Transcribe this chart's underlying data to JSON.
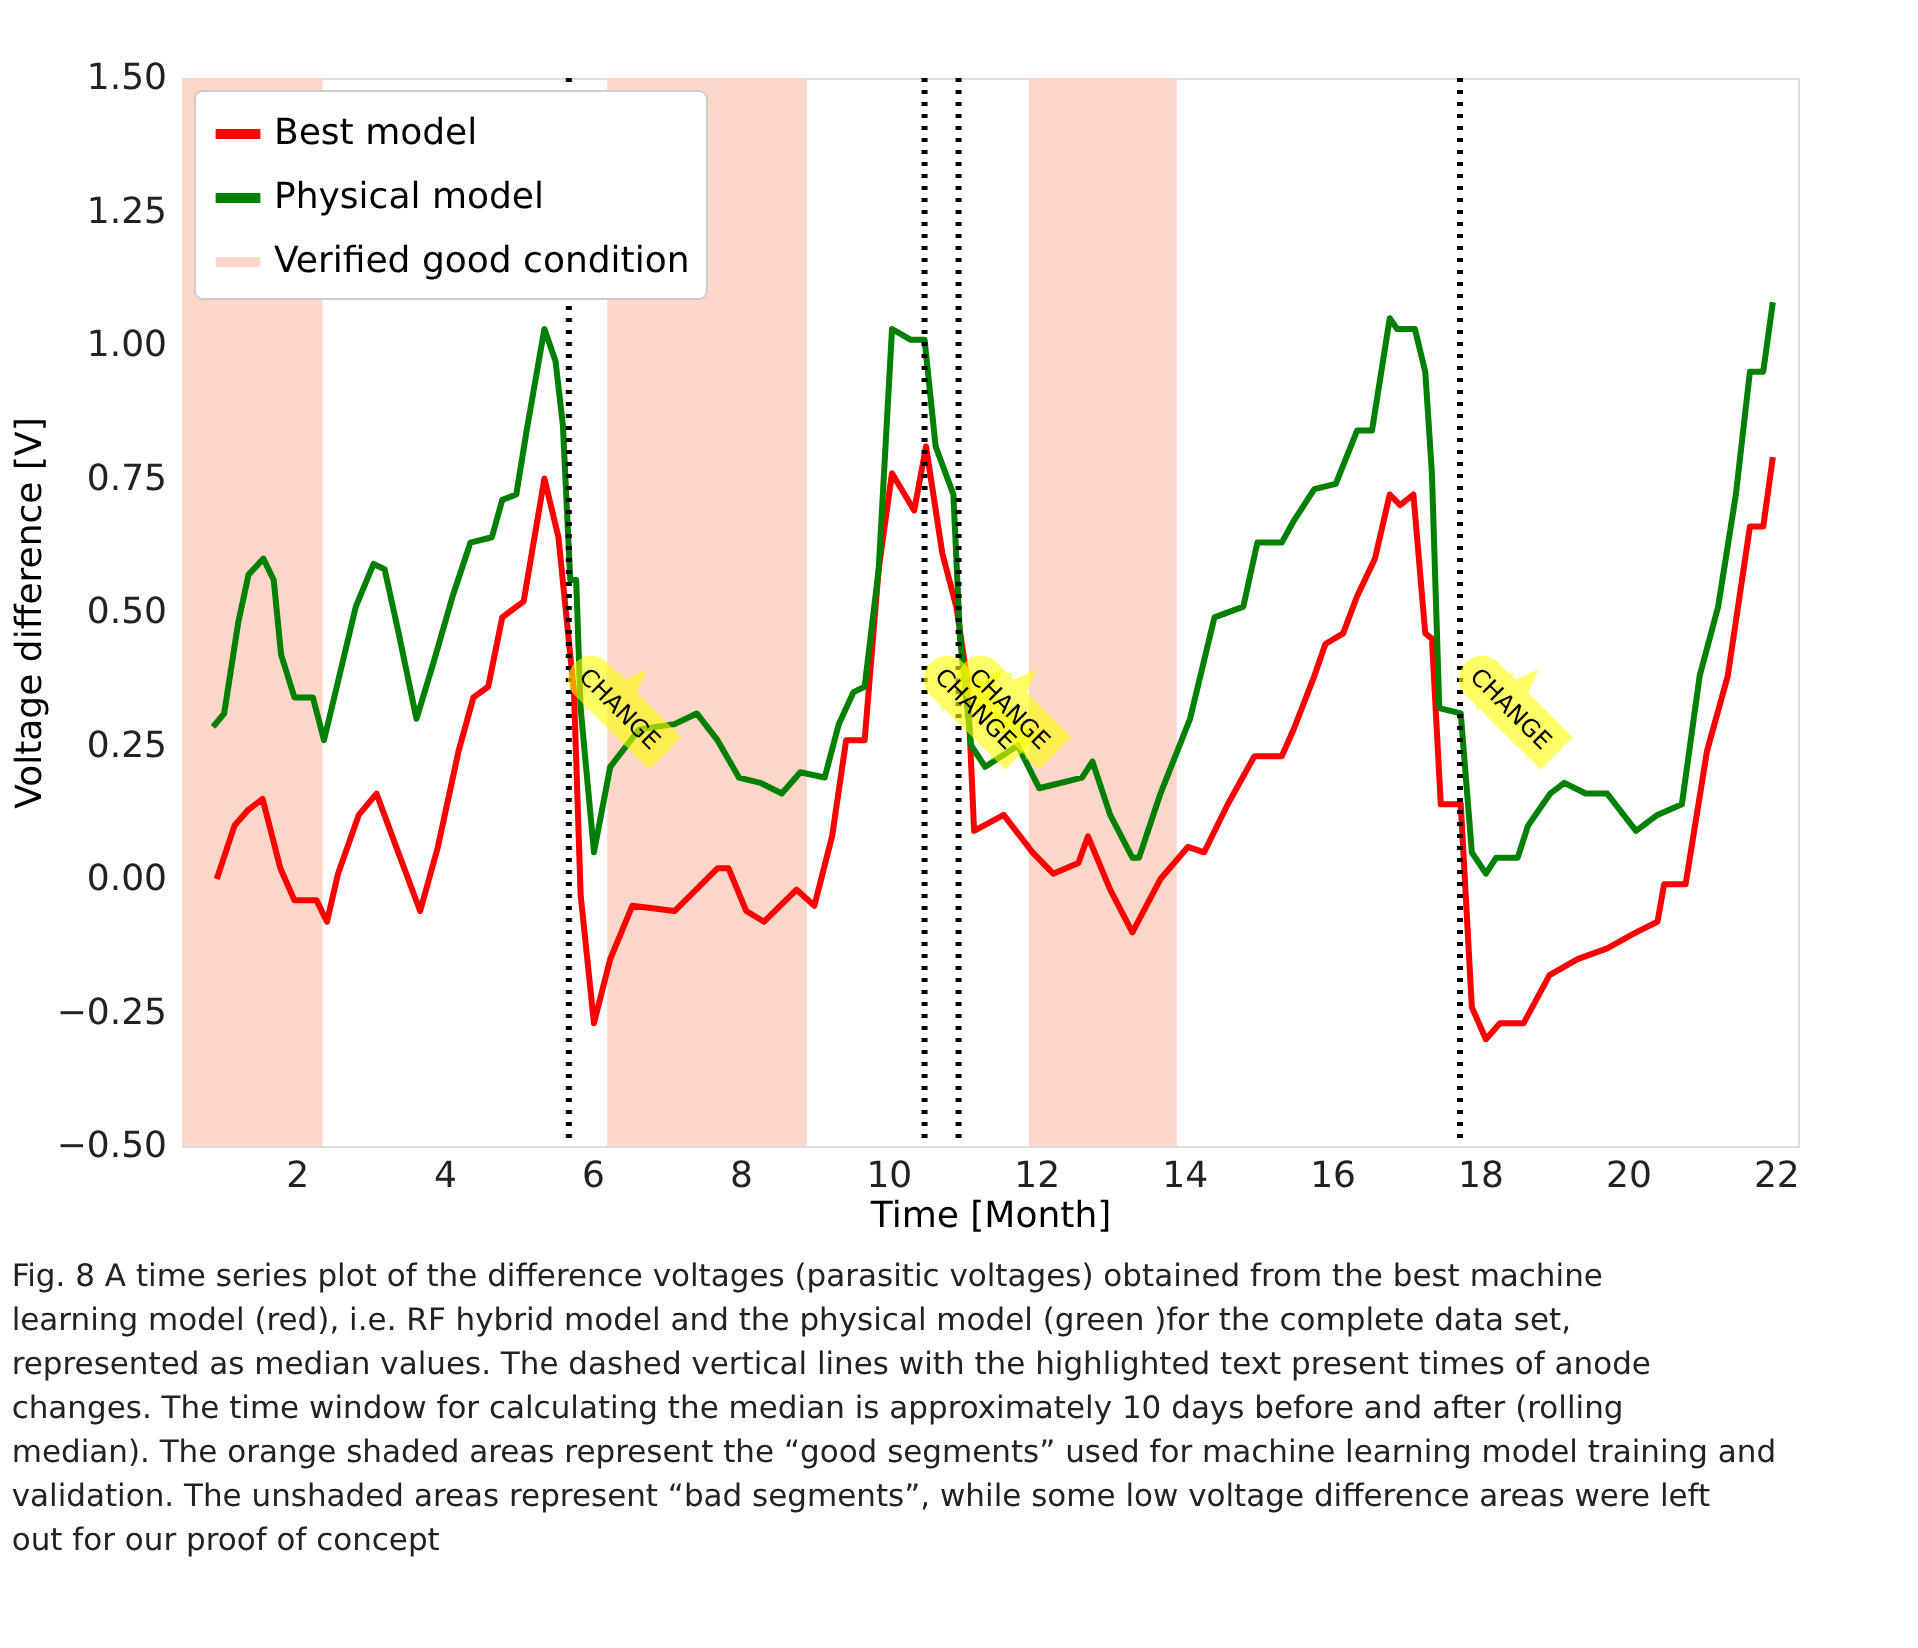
{
  "chart_data": {
    "type": "line",
    "xlabel": "Time [Month]",
    "ylabel": "Voltage difference [V]",
    "xlim": [
      0.45,
      22.3
    ],
    "ylim": [
      -0.5,
      1.5
    ],
    "xticks": [
      2,
      4,
      6,
      8,
      10,
      12,
      14,
      16,
      18,
      20,
      22
    ],
    "yticks": [
      {
        "value": -0.5,
        "label": "−0.50"
      },
      {
        "value": -0.25,
        "label": "−0.25"
      },
      {
        "value": 0,
        "label": "0.00"
      },
      {
        "value": 0.25,
        "label": "0.25"
      },
      {
        "value": 0.5,
        "label": "0.50"
      },
      {
        "value": 0.75,
        "label": "0.75"
      },
      {
        "value": 1.0,
        "label": "1.00"
      },
      {
        "value": 1.25,
        "label": "1.25"
      },
      {
        "value": 1.5,
        "label": "1.50"
      }
    ],
    "grid": false,
    "legend": "top left",
    "line_style": "solid",
    "marker": "none",
    "series": [
      {
        "name": "Best model",
        "color": "#ff0000",
        "x": [
          0.92,
          1.16,
          1.35,
          1.54,
          1.78,
          1.97,
          2.27,
          2.41,
          2.56,
          2.84,
          3.08,
          3.32,
          3.67,
          3.91,
          4.19,
          4.39,
          4.59,
          4.78,
          5.07,
          5.35,
          5.54,
          5.75,
          5.84,
          6.02,
          6.24,
          6.54,
          7.11,
          7.69,
          7.84,
          8.08,
          8.32,
          8.76,
          9.0,
          9.24,
          9.43,
          9.68,
          9.87,
          10.05,
          10.35,
          10.51,
          10.73,
          10.92,
          11.07,
          11.16,
          11.56,
          11.95,
          12.23,
          12.57,
          12.7,
          13.0,
          13.3,
          13.68,
          14.05,
          14.27,
          14.59,
          14.95,
          15.32,
          15.48,
          15.76,
          15.91,
          16.15,
          16.34,
          16.58,
          16.78,
          16.92,
          17.1,
          17.26,
          17.35,
          17.47,
          17.74,
          17.89,
          18.08,
          18.27,
          18.59,
          18.94,
          19.32,
          19.72,
          20.11,
          20.4,
          20.49,
          20.78,
          21.07,
          21.35,
          21.65,
          21.83,
          21.96
        ],
        "values": [
          0.0,
          0.1,
          0.13,
          0.15,
          0.02,
          -0.04,
          -0.04,
          -0.08,
          0.01,
          0.12,
          0.16,
          0.07,
          -0.06,
          0.06,
          0.24,
          0.34,
          0.36,
          0.49,
          0.52,
          0.75,
          0.64,
          0.35,
          -0.03,
          -0.27,
          -0.15,
          -0.05,
          -0.06,
          0.02,
          0.02,
          -0.06,
          -0.08,
          -0.02,
          -0.05,
          0.08,
          0.26,
          0.26,
          0.58,
          0.76,
          0.69,
          0.81,
          0.61,
          0.51,
          0.37,
          0.09,
          0.12,
          0.05,
          0.01,
          0.03,
          0.08,
          -0.02,
          -0.1,
          0.0,
          0.06,
          0.05,
          0.14,
          0.23,
          0.23,
          0.28,
          0.38,
          0.44,
          0.46,
          0.53,
          0.6,
          0.72,
          0.7,
          0.72,
          0.46,
          0.45,
          0.14,
          0.14,
          -0.24,
          -0.3,
          -0.27,
          -0.27,
          -0.18,
          -0.15,
          -0.13,
          -0.1,
          -0.08,
          -0.01,
          -0.01,
          0.24,
          0.38,
          0.66,
          0.66,
          0.79
        ]
      },
      {
        "name": "Physical model",
        "color": "#008000",
        "x": [
          0.87,
          1.02,
          1.21,
          1.35,
          1.55,
          1.69,
          1.79,
          1.97,
          2.22,
          2.37,
          2.56,
          2.8,
          3.04,
          3.19,
          3.38,
          3.62,
          3.86,
          4.11,
          4.35,
          4.64,
          4.78,
          4.97,
          5.11,
          5.35,
          5.5,
          5.6,
          5.7,
          5.78,
          5.84,
          6.02,
          6.24,
          6.63,
          7.11,
          7.41,
          7.69,
          7.98,
          8.27,
          8.56,
          8.81,
          9.14,
          9.33,
          9.53,
          9.68,
          9.87,
          10.05,
          10.3,
          10.49,
          10.64,
          10.88,
          10.97,
          11.12,
          11.31,
          11.75,
          12.04,
          12.62,
          12.76,
          13.0,
          13.3,
          13.39,
          13.68,
          14.08,
          14.41,
          14.8,
          14.99,
          15.32,
          15.48,
          15.76,
          16.05,
          16.34,
          16.54,
          16.78,
          16.88,
          17.12,
          17.26,
          17.35,
          17.45,
          17.74,
          17.89,
          18.08,
          18.22,
          18.51,
          18.65,
          18.95,
          19.14,
          19.43,
          19.72,
          20.11,
          20.4,
          20.73,
          20.97,
          21.22,
          21.46,
          21.65,
          21.83,
          21.96
        ],
        "values": [
          0.285,
          0.31,
          0.48,
          0.57,
          0.6,
          0.56,
          0.42,
          0.34,
          0.34,
          0.26,
          0.37,
          0.51,
          0.59,
          0.58,
          0.46,
          0.3,
          0.41,
          0.53,
          0.63,
          0.64,
          0.71,
          0.72,
          0.84,
          1.03,
          0.97,
          0.85,
          0.56,
          0.56,
          0.32,
          0.05,
          0.21,
          0.28,
          0.29,
          0.31,
          0.26,
          0.19,
          0.18,
          0.16,
          0.2,
          0.19,
          0.29,
          0.35,
          0.36,
          0.58,
          1.03,
          1.01,
          1.01,
          0.81,
          0.72,
          0.45,
          0.25,
          0.21,
          0.25,
          0.17,
          0.19,
          0.22,
          0.12,
          0.04,
          0.04,
          0.16,
          0.3,
          0.49,
          0.51,
          0.63,
          0.63,
          0.67,
          0.73,
          0.74,
          0.84,
          0.84,
          1.05,
          1.03,
          1.03,
          0.95,
          0.76,
          0.32,
          0.31,
          0.05,
          0.01,
          0.04,
          0.04,
          0.1,
          0.16,
          0.18,
          0.16,
          0.16,
          0.09,
          0.12,
          0.14,
          0.38,
          0.51,
          0.72,
          0.95,
          0.95,
          1.08
        ]
      }
    ],
    "bands": [
      {
        "axis": "x",
        "from": 0.45,
        "to": 2.35,
        "label": "Verified good condition",
        "color": "#fcd6c8"
      },
      {
        "axis": "x",
        "from": 6.2,
        "to": 8.9,
        "color": "#fcd6c8"
      },
      {
        "axis": "x",
        "from": 11.9,
        "to": 13.9,
        "color": "#fcd6c8"
      }
    ],
    "ref_lines": [
      {
        "axis": "x",
        "value": 5.68,
        "color": "#000000",
        "line_style": "dotted",
        "label": "CHANGE"
      },
      {
        "axis": "x",
        "value": 10.49,
        "color": "#000000",
        "line_style": "dotted",
        "label": "CHANGE"
      },
      {
        "axis": "x",
        "value": 10.95,
        "color": "#000000",
        "line_style": "dotted",
        "label": "CHANGE"
      },
      {
        "axis": "x",
        "value": 17.73,
        "color": "#000000",
        "line_style": "dotted",
        "label": "CHANGE"
      }
    ],
    "annotations": [
      "Fig. 8  A time series plot of the difference voltages (parasitic voltages) obtained from the best machine learning model (red), i.e. RF hybrid model and the physical model (green )for the complete data set, represented as median values. The dashed vertical lines with the highlighted text present times of anode changes. The time window for calculating the median is approximately 10 days before and after (rolling median). The orange shaded areas represent the “good segments” used for machine learning model training and validation. The unshaded areas represent “bad segments”, while some low voltage difference areas were left out for our proof of concept"
    ]
  }
}
